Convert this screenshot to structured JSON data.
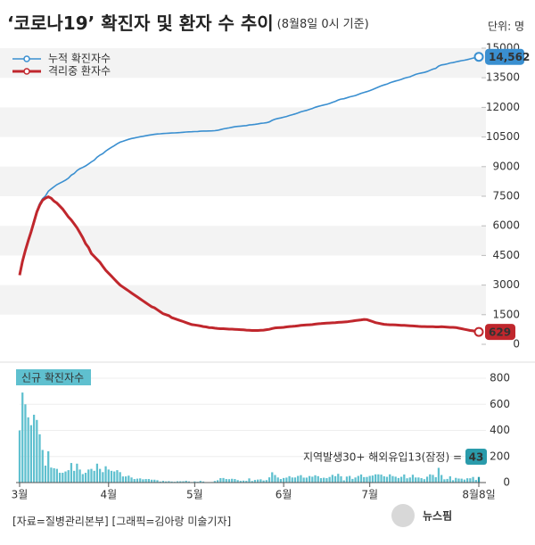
{
  "chart_data": [
    {
      "type": "line",
      "title": "‘코로나19’ 확진자 및 환자 수 추이",
      "subtitle": "(8월8일 0시 기준)",
      "unit": "단위: 명",
      "ylim": [
        0,
        15000
      ],
      "yticks": [
        0,
        1500,
        3000,
        4500,
        6000,
        7500,
        9000,
        10500,
        12000,
        13500,
        15000
      ],
      "grid": true,
      "legend": "top-left",
      "series": [
        {
          "name": "누적 확진자수",
          "color": "#3a8fd0",
          "last_label": "14,562",
          "values": [
            3526,
            4212,
            4812,
            5328,
            5766,
            6284,
            6767,
            7134,
            7382,
            7513,
            7755,
            7869,
            7979,
            8086,
            8162,
            8236,
            8320,
            8413,
            8565,
            8652,
            8799,
            8897,
            8961,
            9037,
            9137,
            9241,
            9332,
            9478,
            9583,
            9661,
            9786,
            9887,
            9976,
            10062,
            10156,
            10237,
            10284,
            10331,
            10384,
            10423,
            10450,
            10480,
            10512,
            10537,
            10564,
            10591,
            10613,
            10635,
            10653,
            10661,
            10674,
            10683,
            10694,
            10702,
            10708,
            10718,
            10728,
            10738,
            10752,
            10761,
            10765,
            10774,
            10780,
            10793,
            10801,
            10804,
            10806,
            10810,
            10822,
            10840,
            10874,
            10909,
            10936,
            10962,
            10991,
            11018,
            11037,
            11050,
            11065,
            11078,
            11110,
            11122,
            11142,
            11165,
            11190,
            11206,
            11225,
            11265,
            11344,
            11402,
            11441,
            11468,
            11503,
            11541,
            11590,
            11629,
            11668,
            11719,
            11776,
            11814,
            11852,
            11902,
            11947,
            12003,
            12051,
            12085,
            12121,
            12155,
            12198,
            12257,
            12306,
            12373,
            12421,
            12438,
            12484,
            12535,
            12563,
            12602,
            12653,
            12715,
            12757,
            12800,
            12850,
            12904,
            12967,
            13030,
            13091,
            13137,
            13181,
            13244,
            13293,
            13338,
            13373,
            13417,
            13479,
            13512,
            13551,
            13612,
            13672,
            13711,
            13745,
            13771,
            13816,
            13879,
            13938,
            13979,
            14092,
            14150,
            14175,
            14203,
            14251,
            14269,
            14305,
            14336,
            14366,
            14389,
            14423,
            14456,
            14499,
            14519,
            14562
          ]
        },
        {
          "name": "격리중 환자수",
          "color": "#c0272d",
          "values": [
            3500,
            4200,
            4750,
            5250,
            5700,
            6200,
            6700,
            7050,
            7300,
            7400,
            7470,
            7400,
            7250,
            7150,
            7000,
            6850,
            6650,
            6450,
            6300,
            6100,
            5900,
            5650,
            5400,
            5100,
            4900,
            4600,
            4450,
            4300,
            4150,
            3950,
            3750,
            3600,
            3450,
            3300,
            3150,
            3000,
            2900,
            2800,
            2700,
            2600,
            2500,
            2400,
            2300,
            2200,
            2100,
            2000,
            1900,
            1850,
            1750,
            1650,
            1550,
            1500,
            1450,
            1350,
            1300,
            1250,
            1200,
            1150,
            1100,
            1050,
            1000,
            980,
            960,
            930,
            900,
            880,
            850,
            840,
            820,
            800,
            790,
            790,
            780,
            770,
            770,
            760,
            750,
            740,
            730,
            720,
            710,
            700,
            700,
            700,
            710,
            720,
            740,
            760,
            800,
            830,
            840,
            850,
            860,
            880,
            900,
            910,
            920,
            940,
            960,
            970,
            980,
            990,
            1000,
            1020,
            1040,
            1050,
            1060,
            1070,
            1080,
            1090,
            1100,
            1110,
            1120,
            1130,
            1140,
            1160,
            1180,
            1200,
            1220,
            1240,
            1260,
            1250,
            1200,
            1150,
            1100,
            1070,
            1040,
            1010,
            1000,
            990,
            990,
            980,
            970,
            960,
            960,
            950,
            940,
            930,
            920,
            910,
            900,
            900,
            890,
            890,
            890,
            880,
            880,
            890,
            880,
            870,
            860,
            860,
            850,
            820,
            790,
            760,
            730,
            700,
            680,
            650,
            629
          ]
        }
      ]
    },
    {
      "type": "bar",
      "title": "신규 확진자수",
      "color": "#5fc0cf",
      "ylim": [
        0,
        800
      ],
      "yticks": [
        0,
        200,
        400,
        600,
        800
      ],
      "annotation": "지역발생30+ 해외유입13(잠정) =",
      "categories": [
        "3월",
        null,
        null,
        null,
        null,
        null,
        null,
        null,
        null,
        null,
        null,
        null,
        null,
        null,
        null,
        null,
        null,
        null,
        null,
        null,
        null,
        null,
        null,
        null,
        null,
        null,
        null,
        null,
        null,
        null,
        null,
        "4월",
        null,
        null,
        null,
        null,
        null,
        null,
        null,
        null,
        null,
        null,
        null,
        null,
        null,
        null,
        null,
        null,
        null,
        null,
        null,
        null,
        null,
        null,
        null,
        null,
        null,
        null,
        null,
        null,
        null,
        "5월",
        null,
        null,
        null,
        null,
        null,
        null,
        null,
        null,
        null,
        null,
        null,
        null,
        null,
        null,
        null,
        null,
        null,
        null,
        null,
        null,
        null,
        null,
        null,
        null,
        null,
        null,
        null,
        null,
        null,
        null,
        "6월",
        null,
        null,
        null,
        null,
        null,
        null,
        null,
        null,
        null,
        null,
        null,
        null,
        null,
        null,
        null,
        null,
        null,
        null,
        null,
        null,
        null,
        null,
        null,
        null,
        null,
        null,
        null,
        null,
        null,
        "7월",
        null,
        null,
        null,
        null,
        null,
        null,
        null,
        null,
        null,
        null,
        null,
        null,
        null,
        null,
        null,
        null,
        null,
        null,
        null,
        null,
        null,
        null,
        null,
        null,
        null,
        null,
        null,
        null,
        null,
        null,
        null,
        null,
        null,
        null,
        null,
        null,
        null,
        "8월8일"
      ],
      "values": [
        400,
        690,
        600,
        500,
        440,
        520,
        480,
        370,
        250,
        130,
        240,
        115,
        110,
        105,
        75,
        75,
        85,
        95,
        150,
        90,
        145,
        100,
        65,
        75,
        100,
        105,
        90,
        145,
        105,
        80,
        125,
        100,
        90,
        85,
        95,
        80,
        47,
        47,
        53,
        39,
        27,
        30,
        32,
        25,
        27,
        27,
        22,
        22,
        18,
        8,
        13,
        9,
        11,
        8,
        6,
        10,
        10,
        10,
        14,
        9,
        4,
        9,
        6,
        13,
        8,
        3,
        2,
        4,
        12,
        18,
        34,
        35,
        27,
        26,
        29,
        27,
        19,
        13,
        15,
        13,
        32,
        12,
        20,
        23,
        25,
        16,
        19,
        40,
        79,
        58,
        39,
        27,
        35,
        38,
        49,
        39,
        39,
        51,
        57,
        38,
        38,
        50,
        45,
        56,
        49,
        34,
        37,
        34,
        43,
        59,
        49,
        67,
        48,
        17,
        46,
        51,
        28,
        39,
        51,
        62,
        42,
        43,
        51,
        54,
        63,
        63,
        61,
        48,
        44,
        63,
        50,
        45,
        35,
        44,
        62,
        33,
        39,
        60,
        39,
        39,
        34,
        26,
        45,
        63,
        59,
        41,
        113,
        58,
        25,
        28,
        48,
        18,
        36,
        31,
        30,
        23,
        33,
        33,
        43,
        20,
        43
      ]
    }
  ],
  "source": "[자료=질병관리본부] [그래픽=김아랑 미술기자]",
  "logo": "뉴스핌"
}
